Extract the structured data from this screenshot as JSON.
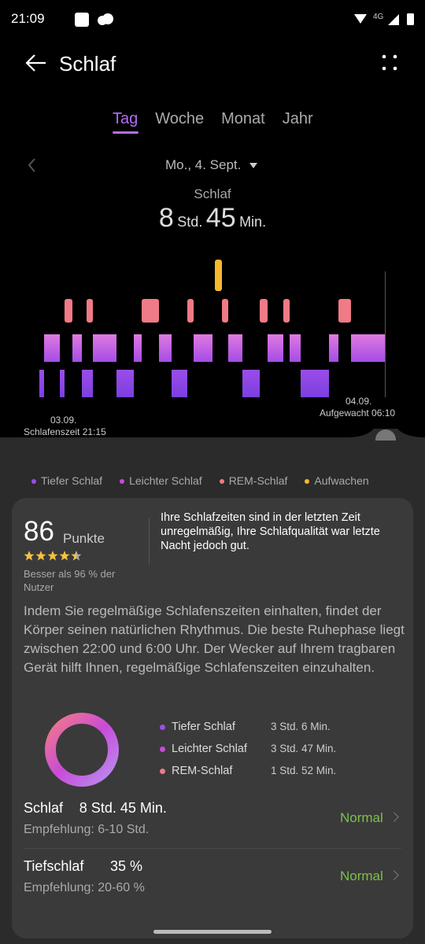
{
  "status": {
    "time": "21:09",
    "network": "4G"
  },
  "header": {
    "title": "Schlaf"
  },
  "tabs": [
    "Tag",
    "Woche",
    "Monat",
    "Jahr"
  ],
  "date": "Mo., 4. Sept.",
  "summary": {
    "label": "Schlaf",
    "hours": "8",
    "hours_unit": "Std.",
    "minutes": "45",
    "minutes_unit": "Min."
  },
  "chart": {
    "start_date": "03.09.",
    "start_label": "Schlafenszeit 21:15",
    "end_date": "04.09.",
    "end_label": "Aufgewacht 06:10"
  },
  "legend": [
    {
      "label": "Tiefer Schlaf",
      "color": "#9b4de8"
    },
    {
      "label": "Leichter Schlaf",
      "color": "#c94bd8"
    },
    {
      "label": "REM-Schlaf",
      "color": "#f07a86"
    },
    {
      "label": "Aufwachen",
      "color": "#f5b82e"
    }
  ],
  "score": {
    "value": "86",
    "unit": "Punkte",
    "comparison": "Besser als 96 % der Nutzer",
    "message": "Ihre Schlafzeiten sind in der letzten Zeit unregelmäßig, Ihre Schlafqualität war letzte Nacht jedoch gut."
  },
  "advice": "Indem Sie regelmäßige Schlafenszeiten einhalten, findet der Körper seinen natürlichen Rhythmus. Die beste Ruhephase liegt zwischen 22:00 und 6:00 Uhr. Der Wecker auf Ihrem tragbaren Gerät hilft Ihnen, regelmäßige Schlafenszeiten einzuhalten.",
  "breakdown": [
    {
      "label": "Tiefer Schlaf",
      "value": "3 Std. 6 Min."
    },
    {
      "label": "Leichter Schlaf",
      "value": "3 Std. 47 Min."
    },
    {
      "label": "REM-Schlaf",
      "value": "1 Std. 52 Min."
    }
  ],
  "metrics": [
    {
      "name": "Schlaf",
      "value": "8 Std. 45 Min.",
      "recommendation": "Empfehlung: 6-10 Std.",
      "status": "Normal"
    },
    {
      "name": "Tiefschlaf",
      "value": "35 %",
      "recommendation": "Empfehlung: 20-60 %",
      "status": "Normal"
    }
  ]
}
